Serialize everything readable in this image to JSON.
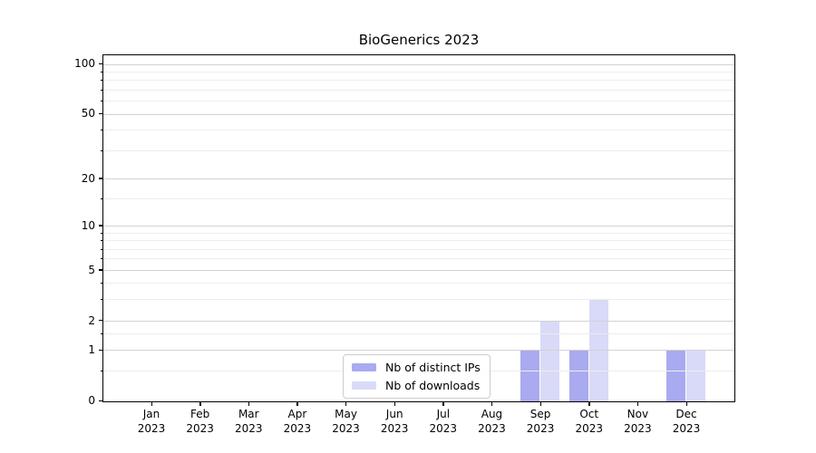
{
  "chart_data": {
    "type": "bar",
    "title": "BioGenerics 2023",
    "x_categories": [
      "Jan",
      "Feb",
      "Mar",
      "Apr",
      "May",
      "Jun",
      "Jul",
      "Aug",
      "Sep",
      "Oct",
      "Nov",
      "Dec"
    ],
    "x_year_label": "2023",
    "series": [
      {
        "name": "Nb of distinct IPs",
        "color": "#a9aaf0",
        "values": [
          0,
          0,
          0,
          0,
          0,
          0,
          0,
          0,
          1,
          1,
          0,
          1
        ]
      },
      {
        "name": "Nb of downloads",
        "color": "#d9daf8",
        "values": [
          0,
          0,
          0,
          0,
          0,
          0,
          0,
          0,
          2,
          3,
          0,
          1
        ]
      }
    ],
    "y_scale": "log1p",
    "y_major_ticks": [
      0,
      1,
      2,
      5,
      10,
      20,
      50,
      100
    ],
    "y_minor_ticks": [
      0.5,
      1.5,
      3,
      4,
      6,
      7,
      8,
      9,
      15,
      30,
      40,
      60,
      70,
      80,
      90
    ],
    "ylim": [
      0,
      116
    ],
    "grid": "horizontal",
    "legend_position": "lower center",
    "colors": {
      "distinct_ips_bar": "#a9aaf0",
      "downloads_bar": "#d9daf8",
      "major_gridline": "#d2d2d2",
      "minor_gridline": "#ededed",
      "axis_frame": "#000000",
      "background": "#ffffff"
    }
  }
}
